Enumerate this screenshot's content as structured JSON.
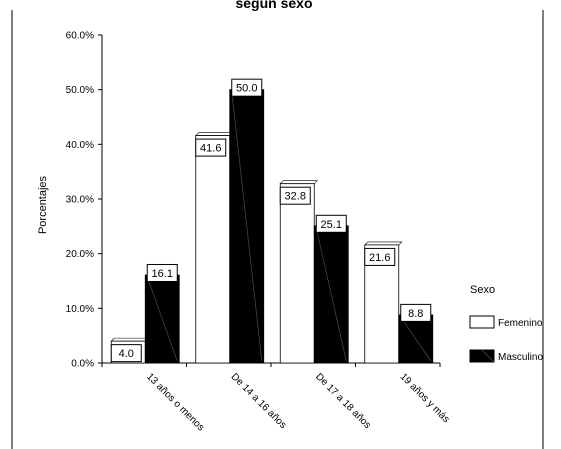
{
  "chart_data": {
    "type": "bar",
    "title": "según sexo",
    "xlabel": "",
    "ylabel": "Porcentajes",
    "ylim": [
      0,
      60
    ],
    "yticks": [
      "0.0%",
      "10.0%",
      "20.0%",
      "30.0%",
      "40.0%",
      "50.0%",
      "60.0%"
    ],
    "categories": [
      "13 años o menos",
      "De 14 a 16 años",
      "De 17 a 18 años",
      "19 años y más"
    ],
    "series": [
      {
        "name": "Femenino",
        "values": [
          4.0,
          41.6,
          32.8,
          21.6
        ],
        "labels": [
          "4.0",
          "41.6",
          "32.8",
          "21.6"
        ],
        "color": "#ffffff"
      },
      {
        "name": "Masculino",
        "values": [
          16.1,
          50.0,
          25.1,
          8.8
        ],
        "labels": [
          "16.1",
          "50.0",
          "25.1",
          "8.8"
        ],
        "color": "#000000"
      }
    ],
    "legend_title": "Sexo",
    "legend_position": "right",
    "grid": false
  }
}
